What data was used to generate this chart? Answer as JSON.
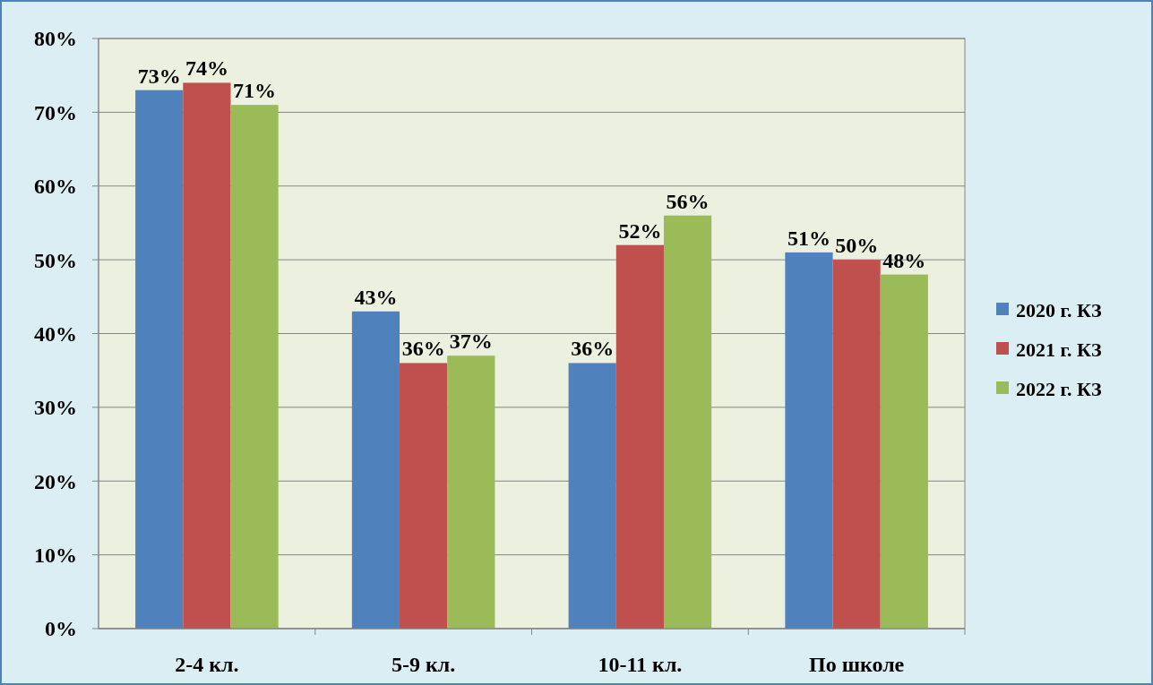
{
  "chart_data": {
    "type": "bar",
    "categories": [
      "2-4 кл.",
      "5-9 кл.",
      "10-11 кл.",
      "По школе"
    ],
    "series": [
      {
        "name": "2020 г. КЗ",
        "color": "#4f81bd",
        "values": [
          73,
          43,
          36,
          51
        ],
        "value_labels": [
          "73%",
          "43%",
          "36%",
          "51%"
        ]
      },
      {
        "name": "2021 г. КЗ",
        "color": "#c0504d",
        "values": [
          74,
          36,
          52,
          50
        ],
        "value_labels": [
          "74%",
          "36%",
          "52%",
          "50%"
        ]
      },
      {
        "name": "2022 г. КЗ",
        "color": "#9bbb59",
        "values": [
          71,
          37,
          56,
          48
        ],
        "value_labels": [
          "71%",
          "37%",
          "56%",
          "48%"
        ]
      }
    ],
    "ylim": [
      0,
      80
    ],
    "yticks": [
      {
        "value": 0,
        "label": "0%"
      },
      {
        "value": 10,
        "label": "10%"
      },
      {
        "value": 20,
        "label": "20%"
      },
      {
        "value": 30,
        "label": "30%"
      },
      {
        "value": 40,
        "label": "40%"
      },
      {
        "value": 50,
        "label": "50%"
      },
      {
        "value": 60,
        "label": "60%"
      },
      {
        "value": 70,
        "label": "70%"
      },
      {
        "value": 80,
        "label": "80%"
      }
    ],
    "grid": "y",
    "legend": "right"
  }
}
